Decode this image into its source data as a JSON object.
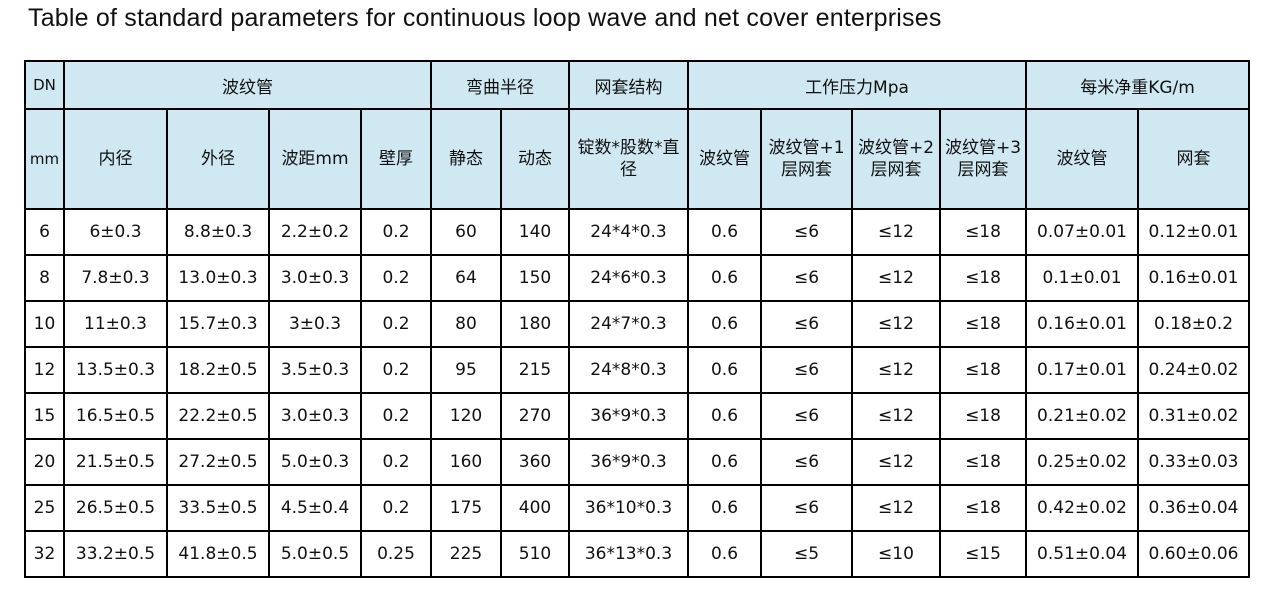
{
  "header": {
    "title": "Table of standard parameters for continuous loop wave and net cover enterprises"
  },
  "table": {
    "group_header": [
      {
        "text": "DN",
        "span": 1
      },
      {
        "text": "波纹管",
        "span": 4
      },
      {
        "text": "弯曲半径",
        "span": 2
      },
      {
        "text": "网套结构",
        "span": 1
      },
      {
        "text": "工作压力Mpa",
        "span": 4
      },
      {
        "text": "每米净重KG/m",
        "span": 2
      }
    ],
    "sub_header": [
      "mm",
      "内径",
      "外径",
      "波距mm",
      "壁厚",
      "静态",
      "动态",
      "锭数*股数*直径",
      "波纹管",
      "波纹管+1层网套",
      "波纹管+2层网套",
      "波纹管+3层网套",
      "波纹管",
      "网套"
    ],
    "rows": [
      [
        "6",
        "6±0.3",
        "8.8±0.3",
        "2.2±0.2",
        "0.2",
        "60",
        "140",
        "24*4*0.3",
        "0.6",
        "≤6",
        "≤12",
        "≤18",
        "0.07±0.01",
        "0.12±0.01"
      ],
      [
        "8",
        "7.8±0.3",
        "13.0±0.3",
        "3.0±0.3",
        "0.2",
        "64",
        "150",
        "24*6*0.3",
        "0.6",
        "≤6",
        "≤12",
        "≤18",
        "0.1±0.01",
        "0.16±0.01"
      ],
      [
        "10",
        "11±0.3",
        "15.7±0.3",
        "3±0.3",
        "0.2",
        "80",
        "180",
        "24*7*0.3",
        "0.6",
        "≤6",
        "≤12",
        "≤18",
        "0.16±0.01",
        "0.18±0.2"
      ],
      [
        "12",
        "13.5±0.3",
        "18.2±0.5",
        "3.5±0.3",
        "0.2",
        "95",
        "215",
        "24*8*0.3",
        "0.6",
        "≤6",
        "≤12",
        "≤18",
        "0.17±0.01",
        "0.24±0.02"
      ],
      [
        "15",
        "16.5±0.5",
        "22.2±0.5",
        "3.0±0.3",
        "0.2",
        "120",
        "270",
        "36*9*0.3",
        "0.6",
        "≤6",
        "≤12",
        "≤18",
        "0.21±0.02",
        "0.31±0.02"
      ],
      [
        "20",
        "21.5±0.5",
        "27.2±0.5",
        "5.0±0.3",
        "0.2",
        "160",
        "360",
        "36*9*0.3",
        "0.6",
        "≤6",
        "≤12",
        "≤18",
        "0.25±0.02",
        "0.33±0.03"
      ],
      [
        "25",
        "26.5±0.5",
        "33.5±0.5",
        "4.5±0.4",
        "0.2",
        "175",
        "400",
        "36*10*0.3",
        "0.6",
        "≤6",
        "≤12",
        "≤18",
        "0.42±0.02",
        "0.36±0.04"
      ],
      [
        "32",
        "33.2±0.5",
        "41.8±0.5",
        "5.0±0.5",
        "0.25",
        "225",
        "510",
        "36*13*0.3",
        "0.6",
        "≤5",
        "≤10",
        "≤15",
        "0.51±0.04",
        "0.60±0.06"
      ]
    ]
  }
}
